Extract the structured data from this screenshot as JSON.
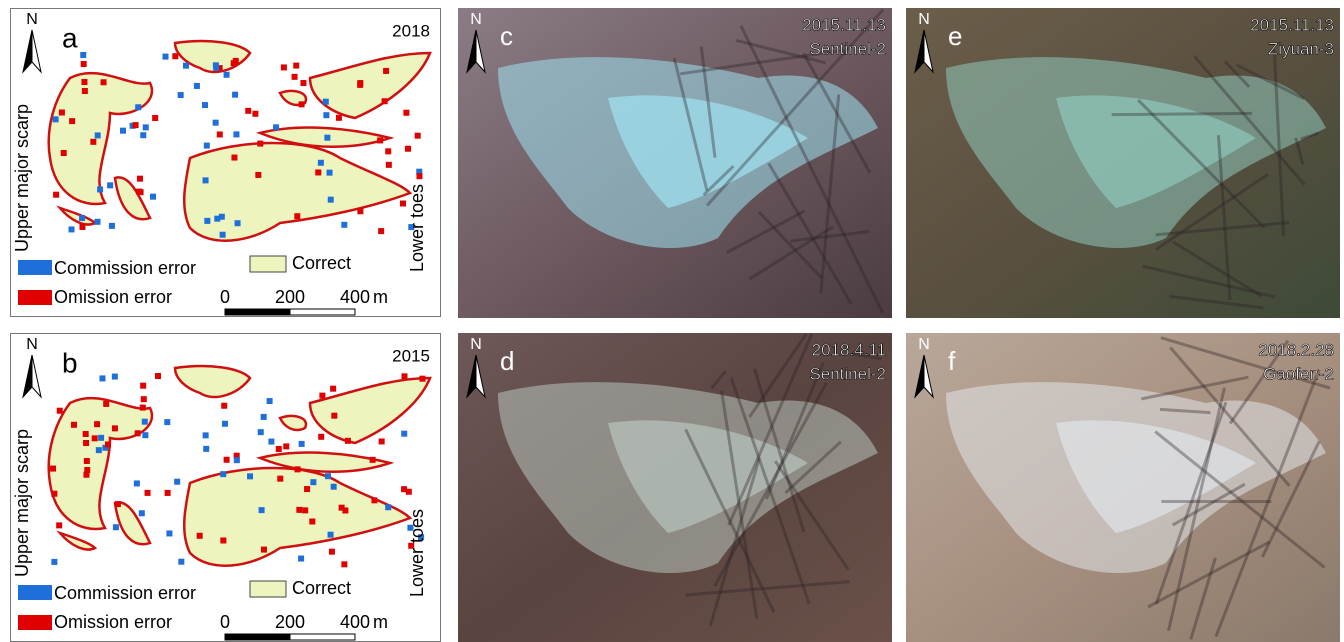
{
  "maps": [
    {
      "north": "N",
      "letter": "a",
      "year": "2018",
      "left_label": "Upper major scarp",
      "right_label": "Lower toes",
      "legend": {
        "commission": "Commission error",
        "correct": "Correct",
        "omission": "Omission error"
      },
      "scale": {
        "ticks": [
          "0",
          "200",
          "400"
        ],
        "unit": "m"
      }
    },
    {
      "north": "N",
      "letter": "b",
      "year": "2015",
      "left_label": "Upper major scarp",
      "right_label": "Lower toes",
      "legend": {
        "commission": "Commission error",
        "correct": "Correct",
        "omission": "Omission error"
      },
      "scale": {
        "ticks": [
          "0",
          "200",
          "400"
        ],
        "unit": "m"
      }
    }
  ],
  "images": [
    {
      "north": "N",
      "letter": "c",
      "date": "2015.11.13",
      "sensor": "Sentinel-2"
    },
    {
      "north": "N",
      "letter": "d",
      "date": "2018.4.11",
      "sensor": "Sentinel-2"
    },
    {
      "north": "N",
      "letter": "e",
      "date": "2015.11.13",
      "sensor": "Ziyuan-3"
    },
    {
      "north": "N",
      "letter": "f",
      "date": "2018.2.28",
      "sensor": "Gaofen-2"
    }
  ]
}
